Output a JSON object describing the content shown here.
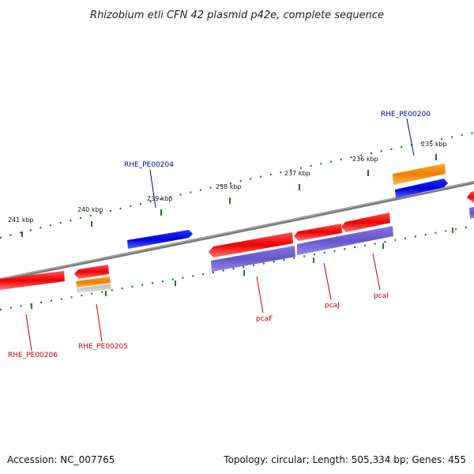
{
  "title": "Rhizobium etli CFN 42 plasmid p42e, complete sequence",
  "ticks": [
    "241 kbp",
    "240 kbp",
    "239 kbp",
    "238 kbp",
    "237 kbp",
    "236 kbp",
    "235 kbp"
  ],
  "genes": {
    "rhe_pe00200": "RHE_PE00200",
    "rhe_pe00204": "RHE_PE00204",
    "rhe_pe00205": "RHE_PE00205",
    "rhe_pe00206": "RHE_PE00206",
    "pcaf": "pcaF",
    "pcaj": "pcaJ",
    "pcai": "pcaI"
  },
  "footer": {
    "accession": "Accession: NC_007765",
    "summary": "Topology: circular; Length: 505,334 bp; Genes: 455"
  },
  "colors": {
    "backbone": "#888888",
    "cds_red": "#ee1111",
    "cds_blue": "#0000ee",
    "cds_orange": "#ff8c00",
    "feature_purple": "#6a5acd",
    "tick_green": "#227722"
  }
}
